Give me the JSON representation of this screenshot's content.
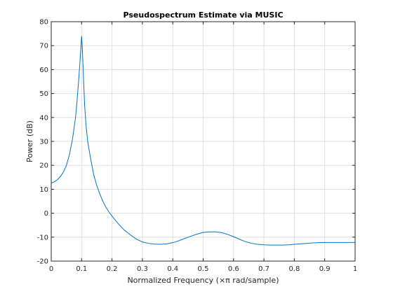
{
  "chart_data": {
    "type": "line",
    "title": "Pseudospectrum Estimate via MUSIC",
    "xlabel": "Normalized Frequency  (×π rad/sample)",
    "ylabel": "Power (dB)",
    "xlim": [
      0,
      1
    ],
    "ylim": [
      -20,
      80
    ],
    "xticks": [
      0,
      0.1,
      0.2,
      0.3,
      0.4,
      0.5,
      0.6,
      0.7,
      0.8,
      0.9,
      1
    ],
    "xtick_labels": [
      "0",
      "0.1",
      "0.2",
      "0.3",
      "0.4",
      "0.5",
      "0.6",
      "0.7",
      "0.8",
      "0.9",
      "1"
    ],
    "yticks": [
      -20,
      -10,
      0,
      10,
      20,
      30,
      40,
      50,
      60,
      70,
      80
    ],
    "ytick_labels": [
      "-20",
      "-10",
      "0",
      "10",
      "20",
      "30",
      "40",
      "50",
      "60",
      "70",
      "80"
    ],
    "grid": true,
    "color": "#0072BD",
    "series": [
      {
        "x": [
          0,
          0.01,
          0.02,
          0.03,
          0.04,
          0.05,
          0.06,
          0.07,
          0.08,
          0.085,
          0.09,
          0.095,
          0.098,
          0.1,
          0.102,
          0.105,
          0.11,
          0.115,
          0.12,
          0.13,
          0.14,
          0.15,
          0.16,
          0.17,
          0.18,
          0.19,
          0.2,
          0.22,
          0.24,
          0.26,
          0.28,
          0.3,
          0.32,
          0.34,
          0.36,
          0.38,
          0.4,
          0.42,
          0.44,
          0.46,
          0.48,
          0.5,
          0.52,
          0.54,
          0.56,
          0.58,
          0.6,
          0.62,
          0.64,
          0.66,
          0.68,
          0.7,
          0.72,
          0.74,
          0.76,
          0.78,
          0.8,
          0.82,
          0.84,
          0.86,
          0.88,
          0.9,
          0.92,
          0.94,
          0.96,
          0.98,
          1
        ],
        "y": [
          12.6,
          13.1,
          14,
          15.3,
          17.2,
          20,
          24.5,
          31,
          40,
          47,
          55,
          64,
          70,
          74,
          70,
          60,
          45,
          36,
          30,
          22.5,
          16,
          11.5,
          8,
          5,
          2.5,
          0.5,
          -1.2,
          -4.3,
          -7,
          -9,
          -10.8,
          -12,
          -12.6,
          -12.9,
          -13,
          -12.8,
          -12.3,
          -11.5,
          -10.5,
          -9.6,
          -8.7,
          -8,
          -7.8,
          -7.8,
          -8.1,
          -8.8,
          -9.8,
          -10.9,
          -11.9,
          -12.6,
          -13,
          -13.2,
          -13.3,
          -13.3,
          -13.3,
          -13.2,
          -13,
          -12.8,
          -12.6,
          -12.4,
          -12.3,
          -12.2,
          -12.2,
          -12.2,
          -12.2,
          -12.2,
          -12.2
        ]
      }
    ]
  }
}
